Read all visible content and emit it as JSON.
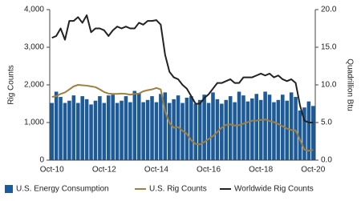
{
  "chart_data": {
    "type": "bar-line",
    "categories": [
      "Oct-10",
      null,
      null,
      null,
      null,
      null,
      null,
      null,
      null,
      null,
      null,
      null,
      "Oct-12",
      null,
      null,
      null,
      null,
      null,
      null,
      null,
      null,
      null,
      null,
      null,
      "Oct-14",
      null,
      null,
      null,
      null,
      null,
      null,
      null,
      null,
      null,
      null,
      null,
      "Oct-16",
      null,
      null,
      null,
      null,
      null,
      null,
      null,
      null,
      null,
      null,
      null,
      "Oct-18",
      null,
      null,
      null,
      null,
      null,
      null,
      null,
      null,
      null,
      null,
      null,
      "Oct-20"
    ],
    "series": [
      {
        "name": "U.S. Energy Consumption",
        "color": "#1d5a98",
        "kind": "bar",
        "axis": "y2",
        "values": [
          7.6,
          9.1,
          8.4,
          7.6,
          7.9,
          8.6,
          7.6,
          8.5,
          8.1,
          7.4,
          7.9,
          8.5,
          7.6,
          8.6,
          8.7,
          7.6,
          7.9,
          8.5,
          7.7,
          9.2,
          8.9,
          7.7,
          8.0,
          8.5,
          7.7,
          8.8,
          9.0,
          7.6,
          8.1,
          8.6,
          7.6,
          8.3,
          8.5,
          7.5,
          8.0,
          8.7,
          7.6,
          9.0,
          8.1,
          7.5,
          8.0,
          8.5,
          7.7,
          9.1,
          8.6,
          7.8,
          8.2,
          8.8,
          8.0,
          9.1,
          8.7,
          7.7,
          8.0,
          8.7,
          7.9,
          9.0,
          8.4,
          6.6,
          7.0,
          7.8,
          7.2
        ]
      },
      {
        "name": "U.S. Rig Counts",
        "color": "#a0803f",
        "kind": "line",
        "values": [
          1680,
          1700,
          1760,
          1800,
          1880,
          1960,
          2000,
          1990,
          1980,
          1960,
          1940,
          1880,
          1810,
          1770,
          1760,
          1760,
          1770,
          1760,
          1740,
          1760,
          1770,
          1830,
          1860,
          1880,
          1920,
          1880,
          1300,
          990,
          860,
          880,
          780,
          700,
          530,
          430,
          420,
          480,
          560,
          640,
          750,
          860,
          940,
          950,
          920,
          930,
          970,
          1010,
          1050,
          1050,
          1070,
          1080,
          1040,
          1010,
          960,
          900,
          840,
          800,
          790,
          540,
          280,
          250,
          270
        ]
      },
      {
        "name": "Worldwide Rig Counts",
        "color": "#222222",
        "kind": "line",
        "values": [
          3250,
          3300,
          3500,
          3200,
          3700,
          3700,
          3800,
          3650,
          3850,
          3400,
          3500,
          3500,
          3450,
          3300,
          3450,
          3550,
          3500,
          3550,
          3500,
          3500,
          3650,
          3600,
          3700,
          3700,
          3720,
          3600,
          2800,
          2350,
          2200,
          2150,
          2000,
          1900,
          1700,
          1500,
          1500,
          1650,
          1750,
          1900,
          2050,
          2050,
          2100,
          2150,
          2050,
          2050,
          2200,
          2200,
          2200,
          2250,
          2300,
          2250,
          2300,
          2200,
          2250,
          2150,
          2100,
          2150,
          2050,
          1450,
          1050,
          1000,
          1000
        ]
      }
    ],
    "ylabel": "Rig Counts",
    "y2label": "Quadrillion Btu",
    "ylim": [
      0,
      4000
    ],
    "yticks": [
      0,
      {
        "value": 1000,
        "label": "1,000"
      },
      {
        "value": 2000,
        "label": "2,000"
      },
      {
        "value": 3000,
        "label": "3,000"
      },
      {
        "value": 4000,
        "label": "4,000"
      }
    ],
    "y2lim": [
      0,
      20
    ],
    "y2ticks": [
      {
        "value": 0,
        "label": "0.0"
      },
      {
        "value": 5,
        "label": "5.0"
      },
      {
        "value": 10,
        "label": "10.0"
      },
      {
        "value": 15,
        "label": "15.0"
      },
      {
        "value": 20,
        "label": "20.0"
      }
    ],
    "legend": "bottom"
  }
}
